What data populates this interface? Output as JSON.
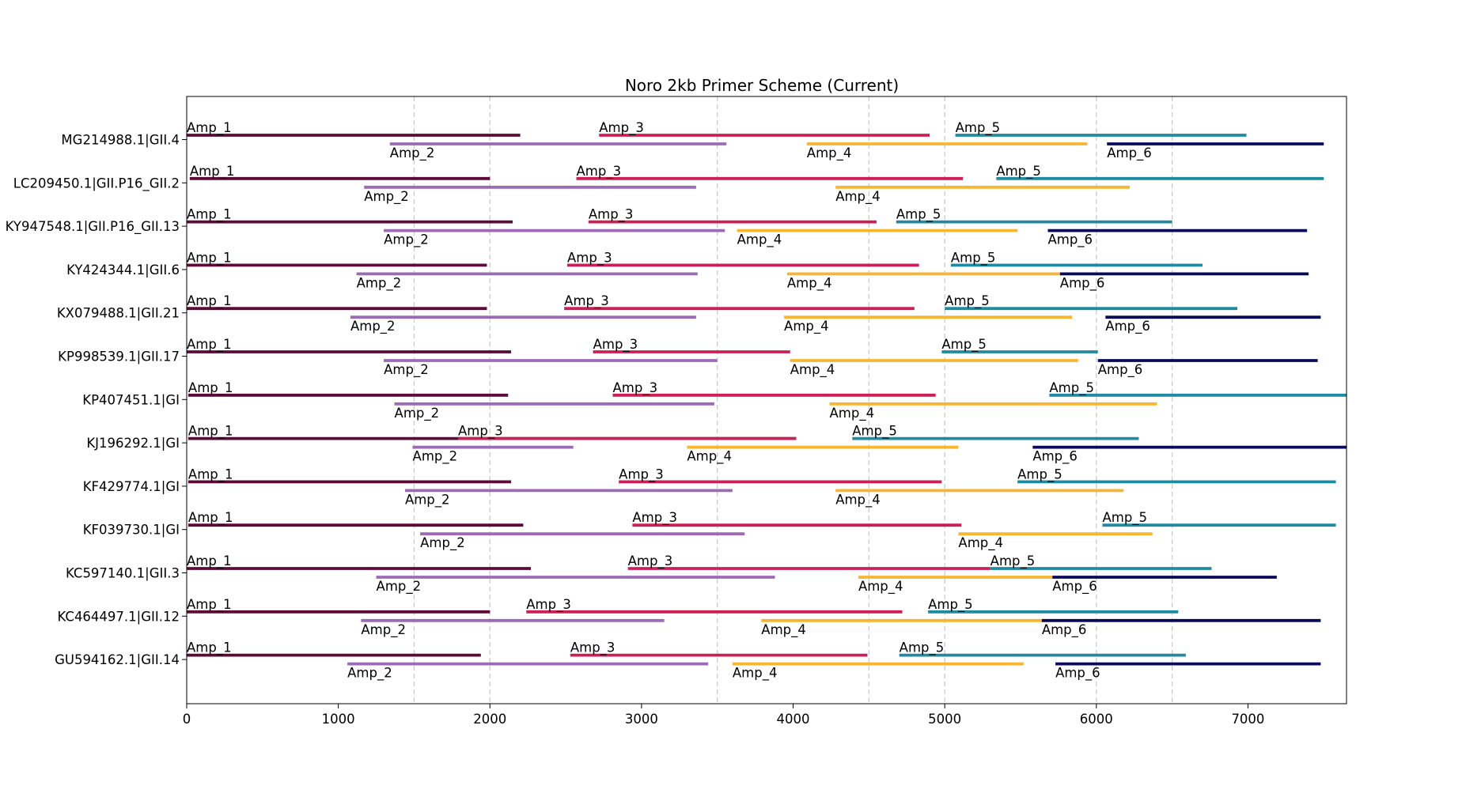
{
  "chart_data": {
    "type": "gantt",
    "title": "Noro 2kb Primer Scheme (Current)",
    "xlabel": "",
    "ylabel": "",
    "xlim": [
      0,
      7650
    ],
    "xticks": [
      0,
      1000,
      2000,
      3000,
      4000,
      5000,
      6000,
      7000
    ],
    "reference_lines": [
      1500,
      2000,
      3500,
      4500,
      5000,
      6000,
      6500
    ],
    "grid": false,
    "colors": {
      "Amp_1": "#5c0a38",
      "Amp_2": "#9b6bb5",
      "Amp_3": "#cc1f55",
      "Amp_4": "#f8b531",
      "Amp_5": "#1f8aa0",
      "Amp_6": "#0a0a5a"
    },
    "genomes": [
      {
        "name": "MG214988.1|GII.4",
        "amplicons": [
          {
            "label": "Amp_1",
            "start": 0,
            "end": 2200
          },
          {
            "label": "Amp_2",
            "start": 1340,
            "end": 3560
          },
          {
            "label": "Amp_3",
            "start": 2720,
            "end": 4900
          },
          {
            "label": "Amp_4",
            "start": 4090,
            "end": 5940
          },
          {
            "label": "Amp_5",
            "start": 5070,
            "end": 6990
          },
          {
            "label": "Amp_6",
            "start": 6070,
            "end": 7500
          }
        ]
      },
      {
        "name": "LC209450.1|GII.P16_GII.2",
        "amplicons": [
          {
            "label": "Amp_1",
            "start": 20,
            "end": 2000
          },
          {
            "label": "Amp_2",
            "start": 1170,
            "end": 3360
          },
          {
            "label": "Amp_3",
            "start": 2570,
            "end": 5120
          },
          {
            "label": "Amp_4",
            "start": 4280,
            "end": 6220
          },
          {
            "label": "Amp_5",
            "start": 5340,
            "end": 7500
          }
        ]
      },
      {
        "name": "KY947548.1|GII.P16_GII.13",
        "amplicons": [
          {
            "label": "Amp_1",
            "start": 0,
            "end": 2150
          },
          {
            "label": "Amp_2",
            "start": 1300,
            "end": 3550
          },
          {
            "label": "Amp_3",
            "start": 2650,
            "end": 4550
          },
          {
            "label": "Amp_4",
            "start": 3630,
            "end": 5480
          },
          {
            "label": "Amp_5",
            "start": 4680,
            "end": 6500
          },
          {
            "label": "Amp_6",
            "start": 5680,
            "end": 7390
          }
        ]
      },
      {
        "name": "KY424344.1|GII.6",
        "amplicons": [
          {
            "label": "Amp_1",
            "start": 0,
            "end": 1980
          },
          {
            "label": "Amp_2",
            "start": 1120,
            "end": 3370
          },
          {
            "label": "Amp_3",
            "start": 2510,
            "end": 4830
          },
          {
            "label": "Amp_4",
            "start": 3960,
            "end": 5770
          },
          {
            "label": "Amp_5",
            "start": 5040,
            "end": 6700
          },
          {
            "label": "Amp_6",
            "start": 5760,
            "end": 7400
          }
        ]
      },
      {
        "name": "KX079488.1|GII.21",
        "amplicons": [
          {
            "label": "Amp_1",
            "start": 0,
            "end": 1980
          },
          {
            "label": "Amp_2",
            "start": 1080,
            "end": 3360
          },
          {
            "label": "Amp_3",
            "start": 2490,
            "end": 4800
          },
          {
            "label": "Amp_4",
            "start": 3940,
            "end": 5840
          },
          {
            "label": "Amp_5",
            "start": 5000,
            "end": 6930
          },
          {
            "label": "Amp_6",
            "start": 6060,
            "end": 7480
          }
        ]
      },
      {
        "name": "KP998539.1|GII.17",
        "amplicons": [
          {
            "label": "Amp_1",
            "start": 0,
            "end": 2140
          },
          {
            "label": "Amp_2",
            "start": 1300,
            "end": 3500
          },
          {
            "label": "Amp_3",
            "start": 2680,
            "end": 3980
          },
          {
            "label": "Amp_4",
            "start": 3980,
            "end": 5880
          },
          {
            "label": "Amp_5",
            "start": 4980,
            "end": 6010
          },
          {
            "label": "Amp_6",
            "start": 6010,
            "end": 7460
          }
        ]
      },
      {
        "name": "KP407451.1|GI",
        "amplicons": [
          {
            "label": "Amp_1",
            "start": 10,
            "end": 2120
          },
          {
            "label": "Amp_2",
            "start": 1370,
            "end": 3480
          },
          {
            "label": "Amp_3",
            "start": 2810,
            "end": 4940
          },
          {
            "label": "Amp_4",
            "start": 4240,
            "end": 6400
          },
          {
            "label": "Amp_5",
            "start": 5690,
            "end": 7650
          }
        ]
      },
      {
        "name": "KJ196292.1|GI",
        "amplicons": [
          {
            "label": "Amp_1",
            "start": 10,
            "end": 4020
          },
          {
            "label": "Amp_2",
            "start": 1490,
            "end": 2550
          },
          {
            "label": "Amp_3",
            "start": 1790,
            "end": 4020
          },
          {
            "label": "Amp_4",
            "start": 3300,
            "end": 5090
          },
          {
            "label": "Amp_5",
            "start": 4390,
            "end": 6280
          },
          {
            "label": "Amp_6",
            "start": 5580,
            "end": 7650
          }
        ]
      },
      {
        "name": "KF429774.1|GI",
        "amplicons": [
          {
            "label": "Amp_1",
            "start": 10,
            "end": 2140
          },
          {
            "label": "Amp_2",
            "start": 1440,
            "end": 3600
          },
          {
            "label": "Amp_3",
            "start": 2850,
            "end": 4980
          },
          {
            "label": "Amp_4",
            "start": 4280,
            "end": 6180
          },
          {
            "label": "Amp_5",
            "start": 5480,
            "end": 7580
          }
        ]
      },
      {
        "name": "KF039730.1|GI",
        "amplicons": [
          {
            "label": "Amp_1",
            "start": 10,
            "end": 2220
          },
          {
            "label": "Amp_2",
            "start": 1540,
            "end": 3680
          },
          {
            "label": "Amp_3",
            "start": 2940,
            "end": 5110
          },
          {
            "label": "Amp_4",
            "start": 5090,
            "end": 6370
          },
          {
            "label": "Amp_5",
            "start": 6040,
            "end": 7580
          }
        ]
      },
      {
        "name": "KC597140.1|GII.3",
        "amplicons": [
          {
            "label": "Amp_1",
            "start": 0,
            "end": 2270
          },
          {
            "label": "Amp_2",
            "start": 1250,
            "end": 3880
          },
          {
            "label": "Amp_3",
            "start": 2910,
            "end": 5300
          },
          {
            "label": "Amp_4",
            "start": 4430,
            "end": 5710
          },
          {
            "label": "Amp_5",
            "start": 5300,
            "end": 6760
          },
          {
            "label": "Amp_6",
            "start": 5710,
            "end": 7190
          }
        ]
      },
      {
        "name": "KC464497.1|GII.12",
        "amplicons": [
          {
            "label": "Amp_1",
            "start": 0,
            "end": 2000
          },
          {
            "label": "Amp_2",
            "start": 1150,
            "end": 3150
          },
          {
            "label": "Amp_3",
            "start": 2240,
            "end": 4720
          },
          {
            "label": "Amp_4",
            "start": 3790,
            "end": 5640
          },
          {
            "label": "Amp_5",
            "start": 4890,
            "end": 6540
          },
          {
            "label": "Amp_6",
            "start": 5640,
            "end": 7480
          }
        ]
      },
      {
        "name": "GU594162.1|GII.14",
        "amplicons": [
          {
            "label": "Amp_1",
            "start": 0,
            "end": 1940
          },
          {
            "label": "Amp_2",
            "start": 1060,
            "end": 3440
          },
          {
            "label": "Amp_3",
            "start": 2530,
            "end": 4490
          },
          {
            "label": "Amp_4",
            "start": 3600,
            "end": 5520
          },
          {
            "label": "Amp_5",
            "start": 4700,
            "end": 6590
          },
          {
            "label": "Amp_6",
            "start": 5730,
            "end": 7480
          }
        ]
      }
    ]
  }
}
